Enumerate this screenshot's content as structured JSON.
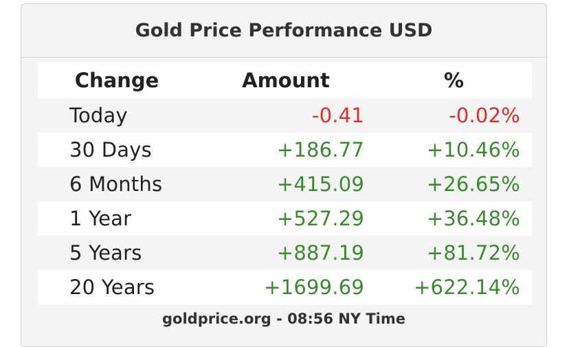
{
  "header": {
    "title": "Gold Price Performance USD"
  },
  "table": {
    "columns": [
      "Change",
      "Amount",
      "%"
    ],
    "rows": [
      [
        "Today",
        "-0.41",
        "-0.02%"
      ],
      [
        "30 Days",
        "+186.77",
        "+10.46%"
      ],
      [
        "6 Months",
        "+415.09",
        "+26.65%"
      ],
      [
        "1 Year",
        "+527.29",
        "+36.48%"
      ],
      [
        "5 Years",
        "+887.19",
        "+81.72%"
      ],
      [
        "20 Years",
        "+1699.69",
        "+622.14%"
      ]
    ]
  },
  "footer": {
    "text": "goldprice.org - 08:56 NY Time"
  }
}
